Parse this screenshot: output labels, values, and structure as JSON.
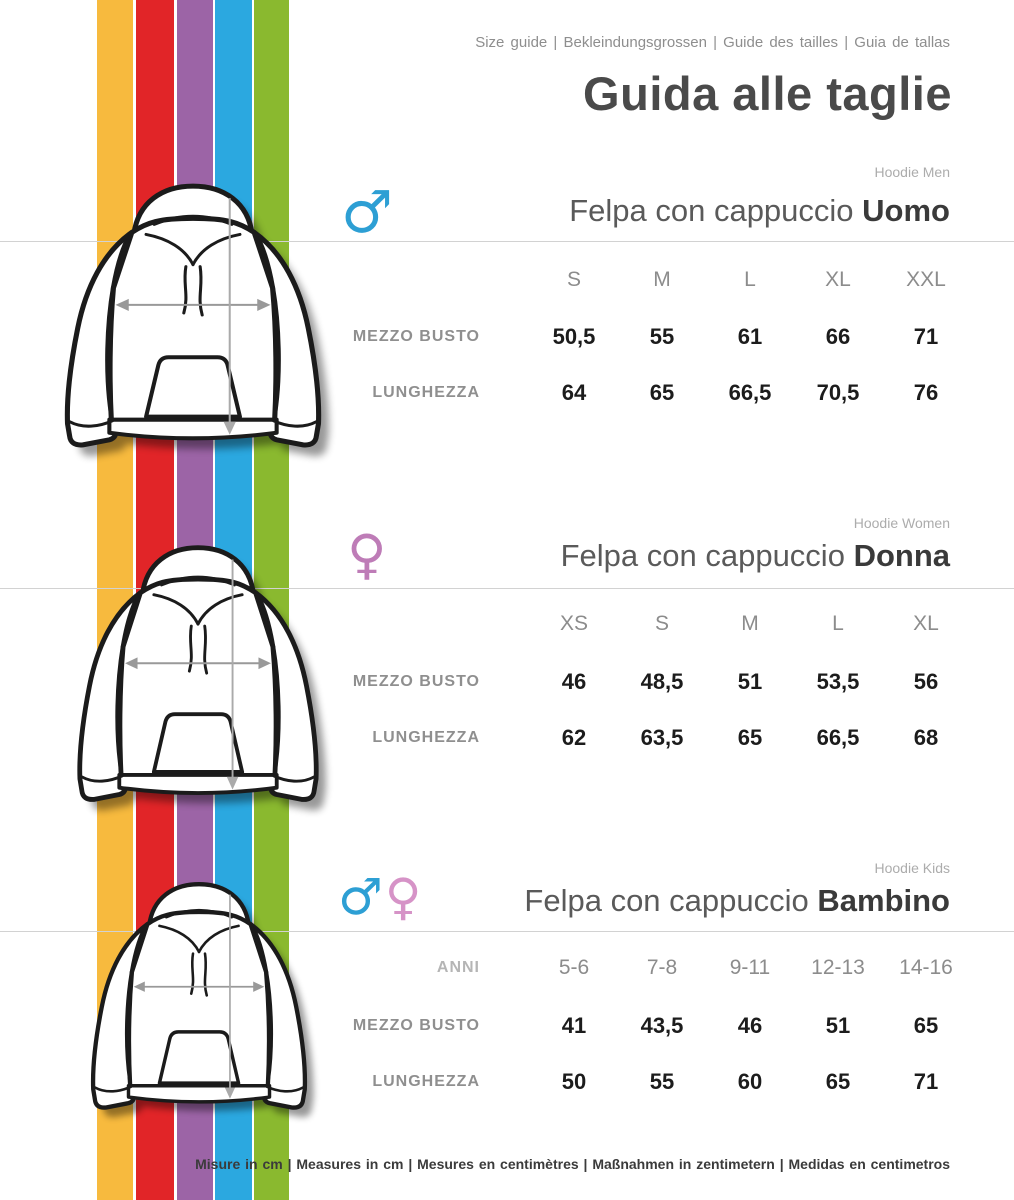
{
  "header": {
    "languages_line": "Size guide | Bekleindungsgrossen | Guide des tailles | Guia de tallas",
    "title": "Guida alle taglie"
  },
  "sections": [
    {
      "id": "men",
      "tag": "Hoodie Men",
      "title_regular": "Felpa con cappuccio",
      "title_bold": "Uomo",
      "gender_icons": [
        {
          "name": "male-symbol",
          "glyph": "♂",
          "color": "#2D9FD4"
        }
      ],
      "table": {
        "corner_label": "",
        "columns": [
          "S",
          "M",
          "L",
          "XL",
          "XXL"
        ],
        "rows": [
          {
            "label": "MEZZO BUSTO",
            "values": [
              "50,5",
              "55",
              "61",
              "66",
              "71"
            ]
          },
          {
            "label": "LUNGHEZZA",
            "values": [
              "64",
              "65",
              "66,5",
              "70,5",
              "76"
            ]
          }
        ]
      }
    },
    {
      "id": "women",
      "tag": "Hoodie Women",
      "title_regular": "Felpa con cappuccio",
      "title_bold": "Donna",
      "gender_icons": [
        {
          "name": "female-symbol",
          "glyph": "♀",
          "color": "#BE7CB7"
        }
      ],
      "table": {
        "corner_label": "",
        "columns": [
          "XS",
          "S",
          "M",
          "L",
          "XL"
        ],
        "rows": [
          {
            "label": "MEZZO BUSTO",
            "values": [
              "46",
              "48,5",
              "51",
              "53,5",
              "56"
            ]
          },
          {
            "label": "LUNGHEZZA",
            "values": [
              "62",
              "63,5",
              "65",
              "66,5",
              "68"
            ]
          }
        ]
      }
    },
    {
      "id": "kids",
      "tag": "Hoodie Kids",
      "title_regular": "Felpa con cappuccio",
      "title_bold": "Bambino",
      "gender_icons": [
        {
          "name": "male-symbol",
          "glyph": "♂",
          "color": "#2D9FD4"
        },
        {
          "name": "female-symbol",
          "glyph": "♀",
          "color": "#D693C7"
        }
      ],
      "table": {
        "corner_label": "ANNI",
        "columns": [
          "5-6",
          "7-8",
          "9-11",
          "12-13",
          "14-16"
        ],
        "rows": [
          {
            "label": "MEZZO BUSTO",
            "values": [
              "41",
              "43,5",
              "46",
              "51",
              "65"
            ]
          },
          {
            "label": "LUNGHEZZA",
            "values": [
              "50",
              "55",
              "60",
              "65",
              "71"
            ]
          }
        ]
      }
    }
  ],
  "footer": {
    "note": "Misure in cm | Measures in cm | Mesures en centimètres | Maßnahmen in zentimetern | Medidas en centimetros"
  },
  "colors": {
    "stripes": [
      {
        "name": "yellow",
        "hex": "#F7BA3E"
      },
      {
        "name": "red",
        "hex": "#E12528"
      },
      {
        "name": "purple",
        "hex": "#9C64A6"
      },
      {
        "name": "blue",
        "hex": "#2BA8E0"
      },
      {
        "name": "green",
        "hex": "#8AB92F"
      }
    ],
    "hoodie_outline": "#1B1B1B",
    "measure_arrow": "#999999",
    "divider": "#D2D2D2"
  }
}
